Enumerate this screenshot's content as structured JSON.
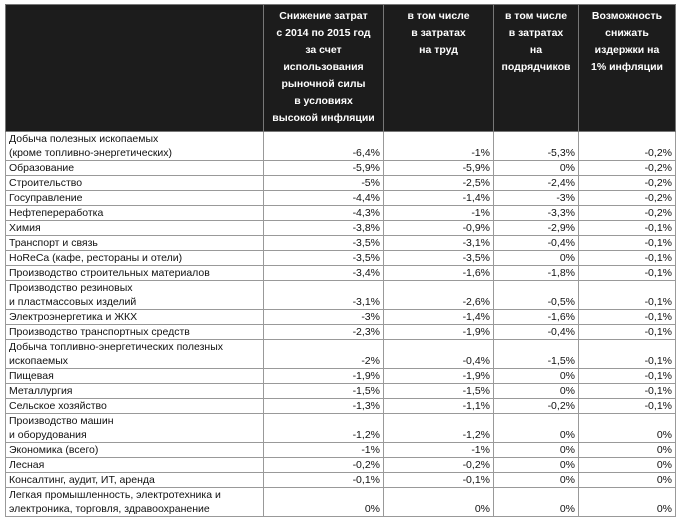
{
  "headers": [
    "",
    "Снижение затрат\nс 2014 по 2015 год\nза счет\nиспользования\nрыночной силы\nв условиях\nвысокой инфляции",
    "в том числе\nв затратах\nна труд",
    "в том числе\nв затратах\nна\nподрядчиков",
    "Возможность\nснижать\nиздержки на\n1% инфляции"
  ],
  "rows": [
    {
      "name": "Добыча полезных ископаемых\n(кроме топливно-энергетических)",
      "v": [
        "-6,4%",
        "-1%",
        "-5,3%",
        "-0,2%"
      ]
    },
    {
      "name": "Образование",
      "v": [
        "-5,9%",
        "-5,9%",
        "0%",
        "-0,2%"
      ]
    },
    {
      "name": "Строительство",
      "v": [
        "-5%",
        "-2,5%",
        "-2,4%",
        "-0,2%"
      ]
    },
    {
      "name": "Госуправление",
      "v": [
        "-4,4%",
        "-1,4%",
        "-3%",
        "-0,2%"
      ]
    },
    {
      "name": "Нефтепереработка",
      "v": [
        "-4,3%",
        "-1%",
        "-3,3%",
        "-0,2%"
      ]
    },
    {
      "name": "Химия",
      "v": [
        "-3,8%",
        "-0,9%",
        "-2,9%",
        "-0,1%"
      ]
    },
    {
      "name": "Транспорт и связь",
      "v": [
        "-3,5%",
        "-3,1%",
        "-0,4%",
        "-0,1%"
      ]
    },
    {
      "name": "HoReCa (кафе, рестораны и отели)",
      "v": [
        "-3,5%",
        "-3,5%",
        "0%",
        "-0,1%"
      ]
    },
    {
      "name": "Производство строительных материалов",
      "v": [
        "-3,4%",
        "-1,6%",
        "-1,8%",
        "-0,1%"
      ]
    },
    {
      "name": "Производство резиновых\nи пластмассовых изделий",
      "v": [
        "-3,1%",
        "-2,6%",
        "-0,5%",
        "-0,1%"
      ]
    },
    {
      "name": "Электроэнергетика и ЖКХ",
      "v": [
        "-3%",
        "-1,4%",
        "-1,6%",
        "-0,1%"
      ]
    },
    {
      "name": "Производство транспортных средств",
      "v": [
        "-2,3%",
        "-1,9%",
        "-0,4%",
        "-0,1%"
      ]
    },
    {
      "name": "Добыча топливно-энергетических полезных\nископаемых",
      "v": [
        "-2%",
        "-0,4%",
        "-1,5%",
        "-0,1%"
      ]
    },
    {
      "name": "Пищевая",
      "v": [
        "-1,9%",
        "-1,9%",
        "0%",
        "-0,1%"
      ]
    },
    {
      "name": "Металлургия",
      "v": [
        "-1,5%",
        "-1,5%",
        "0%",
        "-0,1%"
      ]
    },
    {
      "name": "Сельское хозяйство",
      "v": [
        "-1,3%",
        "-1,1%",
        "-0,2%",
        "-0,1%"
      ]
    },
    {
      "name": "Производство машин\nи оборудования",
      "v": [
        "-1,2%",
        "-1,2%",
        "0%",
        "0%"
      ]
    },
    {
      "name": "Экономика (всего)",
      "v": [
        "-1%",
        "-1%",
        "0%",
        "0%"
      ]
    },
    {
      "name": "Лесная",
      "v": [
        "-0,2%",
        "-0,2%",
        "0%",
        "0%"
      ]
    },
    {
      "name": "Консалтинг, аудит, ИТ, аренда",
      "v": [
        "-0,1%",
        "-0,1%",
        "0%",
        "0%"
      ]
    },
    {
      "name": "Легкая промышленность, электротехника и\nэлектроника, торговля, здравоохранение",
      "v": [
        "0%",
        "0%",
        "0%",
        "0%"
      ]
    }
  ]
}
